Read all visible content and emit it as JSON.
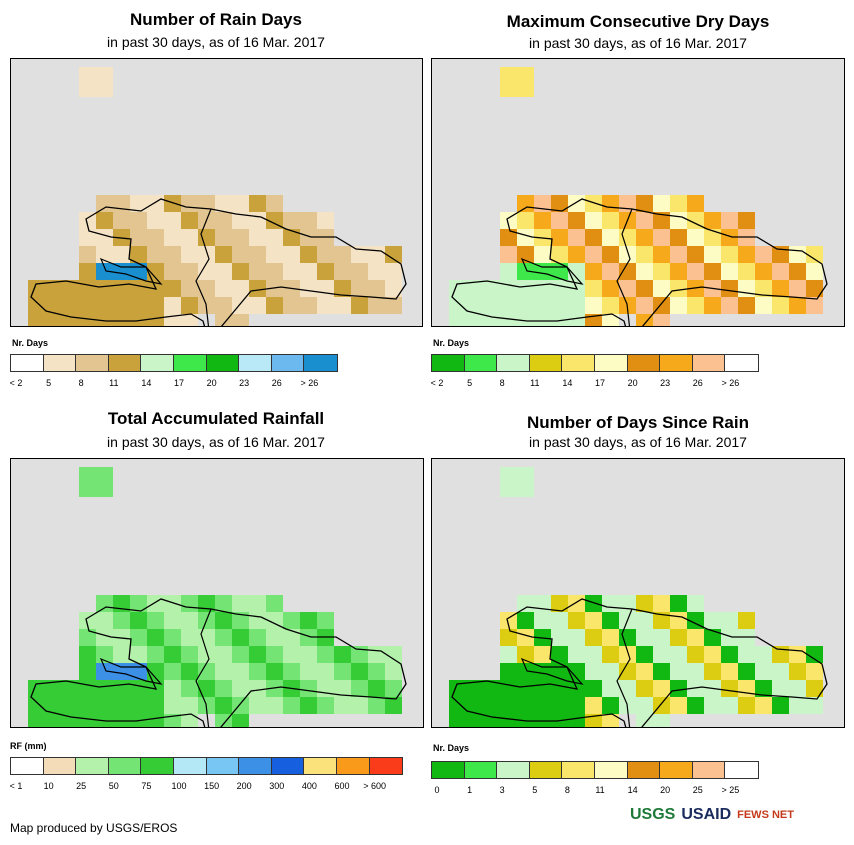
{
  "panels": [
    {
      "title": "Number of Rain Days",
      "subtitle": "in past 30 days, as of 16 Mar. 2017",
      "legend_label": "Nr. Days",
      "legend_ticks": [
        "< 2",
        "5",
        "8",
        "11",
        "14",
        "17",
        "20",
        "23",
        "26",
        "> 26"
      ],
      "legend_colors": [
        "#ffffff",
        "#f5e3c6",
        "#e2c591",
        "#c9a23c",
        "#c9f5c9",
        "#3ee84a",
        "#12b812",
        "#b9e9f6",
        "#6cb9f0",
        "#1a8fd0"
      ]
    },
    {
      "title": "Maximum Consecutive Dry Days",
      "subtitle": "in past 30 days, as of 16 Mar. 2017",
      "legend_label": "Nr. Days",
      "legend_ticks": [
        "< 2",
        "5",
        "8",
        "11",
        "14",
        "17",
        "20",
        "23",
        "26",
        "> 26"
      ],
      "legend_colors": [
        "#12b812",
        "#3ee84a",
        "#c9f5c9",
        "#dccc12",
        "#fbe66c",
        "#fdfcc4",
        "#e08f12",
        "#f6a91a",
        "#fbc191",
        "#ffffff"
      ]
    },
    {
      "title": "Total Accumulated Rainfall",
      "subtitle": "in past 30 days, as of 16 Mar. 2017",
      "legend_label": "RF (mm)",
      "legend_ticks": [
        "< 1",
        "10",
        "25",
        "50",
        "75",
        "100",
        "150",
        "200",
        "300",
        "400",
        "600",
        "> 600"
      ],
      "legend_colors": [
        "#ffffff",
        "#f5dcb8",
        "#b4f2ac",
        "#74e474",
        "#36cc36",
        "#b4e8f6",
        "#78c6f4",
        "#3c90e6",
        "#1660e0",
        "#fbe27a",
        "#fa9a1a",
        "#fa3c1a"
      ]
    },
    {
      "title": "Number of Days Since Rain",
      "subtitle": "in past 30 days, as of 16 Mar. 2017",
      "legend_label": "Nr. Days",
      "legend_ticks": [
        "0",
        "1",
        "3",
        "5",
        "8",
        "11",
        "14",
        "20",
        "25",
        "> 25"
      ],
      "legend_colors": [
        "#12b812",
        "#3ee84a",
        "#c9f5c9",
        "#dccc12",
        "#fbe66c",
        "#fdfcc4",
        "#e08f12",
        "#f6a91a",
        "#fbc191",
        "#ffffff"
      ]
    }
  ],
  "footer": {
    "credit": "Map produced by USGS/EROS",
    "logos": [
      "USGS",
      "USAID",
      "FEWS NET"
    ]
  },
  "colors": {
    "ocean": "#e0e0e0",
    "usgs_green": "#1f7a3a",
    "usaid_navy": "#1a2b5e",
    "fews_red": "#c43a1a"
  }
}
